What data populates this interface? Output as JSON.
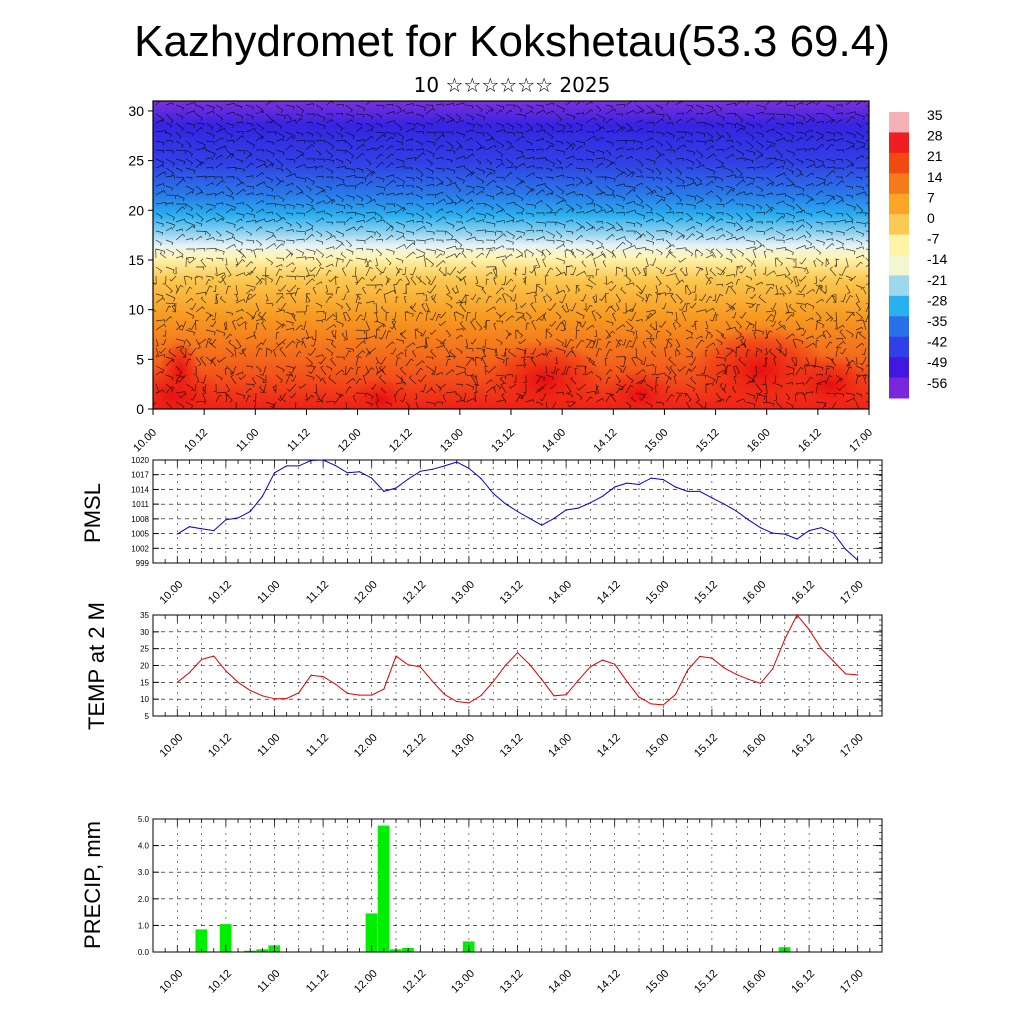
{
  "title": "Kazhydromet for Kokshetau(53.3 69.4)",
  "subtitle": "10 ☆☆☆☆☆☆ 2025",
  "chart_data": [
    {
      "type": "heatmap",
      "name": "cross-section",
      "x_tick_labels": [
        "10.00",
        "10.12",
        "11.00",
        "11.12",
        "12.00",
        "12.12",
        "13.00",
        "13.12",
        "14.00",
        "14.12",
        "15.00",
        "15.12",
        "16.00",
        "16.12",
        "17.00"
      ],
      "y_tick_labels": [
        "0",
        "5",
        "10",
        "15",
        "20",
        "25",
        "30"
      ],
      "ylim": [
        0,
        31
      ],
      "colorbar": {
        "labels": [
          "35",
          "28",
          "21",
          "14",
          "7",
          "0",
          "-7",
          "-14",
          "-21",
          "-28",
          "-35",
          "-42",
          "-49",
          "-56"
        ],
        "colors": [
          "#f5b0b8",
          "#ef1e20",
          "#f04a10",
          "#f6791c",
          "#f9a525",
          "#fbc955",
          "#fff3a8",
          "#f4f6d0",
          "#9ed8ee",
          "#28b0ef",
          "#2870e8",
          "#3040e6",
          "#4218e0",
          "#7a26dc"
        ]
      }
    },
    {
      "type": "line",
      "name": "pmsl",
      "ylabel": "PMSL",
      "ylim": [
        999,
        1020
      ],
      "y_tick_labels": [
        "999",
        "1002",
        "1005",
        "1008",
        "1011",
        "1014",
        "1017",
        "1020"
      ],
      "x_tick_labels": [
        "10.00",
        "10.12",
        "11.00",
        "11.12",
        "12.00",
        "12.12",
        "13.00",
        "13.12",
        "14.00",
        "14.12",
        "15.00",
        "15.12",
        "16.00",
        "16.12",
        "17.00"
      ],
      "color": "#0000dd",
      "values": [
        1004.9,
        1006.4,
        1006.0,
        1005.6,
        1007.8,
        1008.2,
        1009.5,
        1012.6,
        1017.4,
        1018.8,
        1018.8,
        1019.9,
        1020.0,
        1018.9,
        1017.4,
        1017.6,
        1016.3,
        1013.6,
        1014.3,
        1016.1,
        1017.7,
        1018.1,
        1018.8,
        1019.6,
        1018.3,
        1016.2,
        1013.2,
        1011.1,
        1009.5,
        1008.1,
        1006.7,
        1008.1,
        1009.8,
        1010.2,
        1011.3,
        1012.6,
        1014.5,
        1015.3,
        1015.0,
        1016.3,
        1016.0,
        1014.5,
        1013.6,
        1013.6,
        1012.3,
        1011.0,
        1009.6,
        1007.8,
        1006.2,
        1005.1,
        1004.9,
        1003.9,
        1005.6,
        1006.2,
        1005.1,
        1001.8,
        999.6
      ]
    },
    {
      "type": "line",
      "name": "temp2m",
      "ylabel": "TEMP at 2 M",
      "ylim": [
        5,
        35
      ],
      "y_tick_labels": [
        "5",
        "10",
        "15",
        "20",
        "25",
        "30",
        "35"
      ],
      "x_tick_labels": [
        "10.00",
        "10.12",
        "11.00",
        "11.12",
        "12.00",
        "12.12",
        "13.00",
        "13.12",
        "14.00",
        "14.12",
        "15.00",
        "15.12",
        "16.00",
        "16.12",
        "17.00"
      ],
      "color": "#e00000",
      "values": [
        15.0,
        17.9,
        21.8,
        22.8,
        18.4,
        15.0,
        12.6,
        11.0,
        10.1,
        10.2,
        11.9,
        17.1,
        16.7,
        14.5,
        11.7,
        11.2,
        11.2,
        13.0,
        22.8,
        20.2,
        19.6,
        15.3,
        11.4,
        9.3,
        8.9,
        11.1,
        15.2,
        20.0,
        23.8,
        20.3,
        15.8,
        11.0,
        11.3,
        15.6,
        19.6,
        21.6,
        20.4,
        15.3,
        10.6,
        8.6,
        8.3,
        11.4,
        18.6,
        22.7,
        22.2,
        19.3,
        17.4,
        15.9,
        14.7,
        19.0,
        27.8,
        35.0,
        30.7,
        25.0,
        21.3,
        17.5,
        17.2
      ]
    },
    {
      "type": "bar",
      "name": "precip",
      "ylabel": "PRECIP, mm",
      "ylim": [
        0,
        5
      ],
      "y_tick_labels": [
        "0.0",
        "1.0",
        "2.0",
        "3.0",
        "4.0",
        "5.0"
      ],
      "x_tick_labels": [
        "10.00",
        "10.12",
        "11.00",
        "11.12",
        "12.00",
        "12.12",
        "13.00",
        "13.12",
        "14.00",
        "14.12",
        "15.00",
        "15.12",
        "16.00",
        "16.12",
        "17.00"
      ],
      "color": "#00ee00",
      "values": [
        0,
        0,
        0.85,
        0,
        1.05,
        0,
        0.05,
        0.1,
        0.25,
        0,
        0,
        0,
        0,
        0,
        0,
        0,
        1.45,
        4.75,
        0.1,
        0.15,
        0,
        0,
        0,
        0,
        0.4,
        0,
        0,
        0,
        0,
        0,
        0,
        0,
        0,
        0,
        0,
        0,
        0,
        0,
        0,
        0,
        0,
        0,
        0,
        0,
        0,
        0,
        0,
        0,
        0,
        0,
        0.18,
        0,
        0,
        0,
        0,
        0,
        0
      ]
    }
  ]
}
